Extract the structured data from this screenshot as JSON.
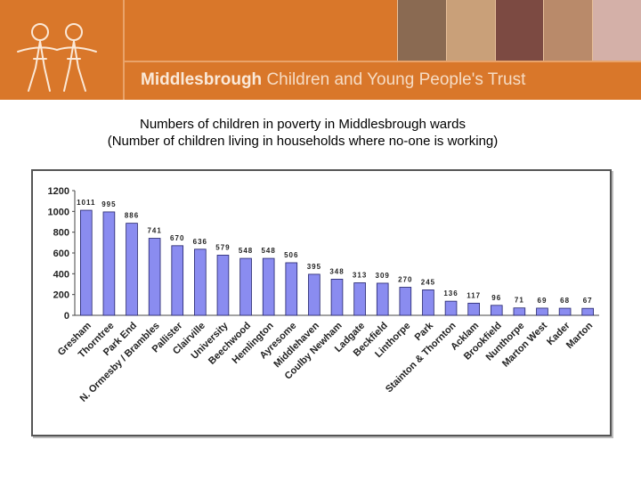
{
  "header": {
    "org_bold": "Middlesbrough",
    "org_rest": "Children and Young People's Trust",
    "colors": {
      "banner": "#d9772a",
      "text": "#f6dcc4"
    },
    "logo_icon": "children-holding-hands-icon"
  },
  "title_line1": "Numbers of children in poverty in Middlesbrough wards",
  "title_line2": "(Number of children living in households where no-one is working)",
  "chart_data": {
    "type": "bar",
    "categories": [
      "Gresham",
      "Thorntree",
      "Park End",
      "N. Ormesby / Brambles",
      "Pallister",
      "Clairville",
      "University",
      "Beechwood",
      "Hemlington",
      "Ayresome",
      "Middlehaven",
      "Coulby Newham",
      "Ladgate",
      "Beckfield",
      "Linthorpe",
      "Park",
      "Stainton & Thornton",
      "Acklam",
      "Brookfield",
      "Nunthorpe",
      "Marton West",
      "Kader",
      "Marton"
    ],
    "values": [
      1011,
      995,
      886,
      741,
      670,
      636,
      579,
      548,
      548,
      506,
      395,
      348,
      313,
      309,
      270,
      245,
      136,
      117,
      96,
      71,
      69,
      68,
      67
    ],
    "ylim": [
      0,
      1200
    ],
    "yticks": [
      0,
      200,
      400,
      600,
      800,
      1000,
      1200
    ],
    "bar_color": "#8a8cf0",
    "grid": false,
    "legend": "none"
  }
}
